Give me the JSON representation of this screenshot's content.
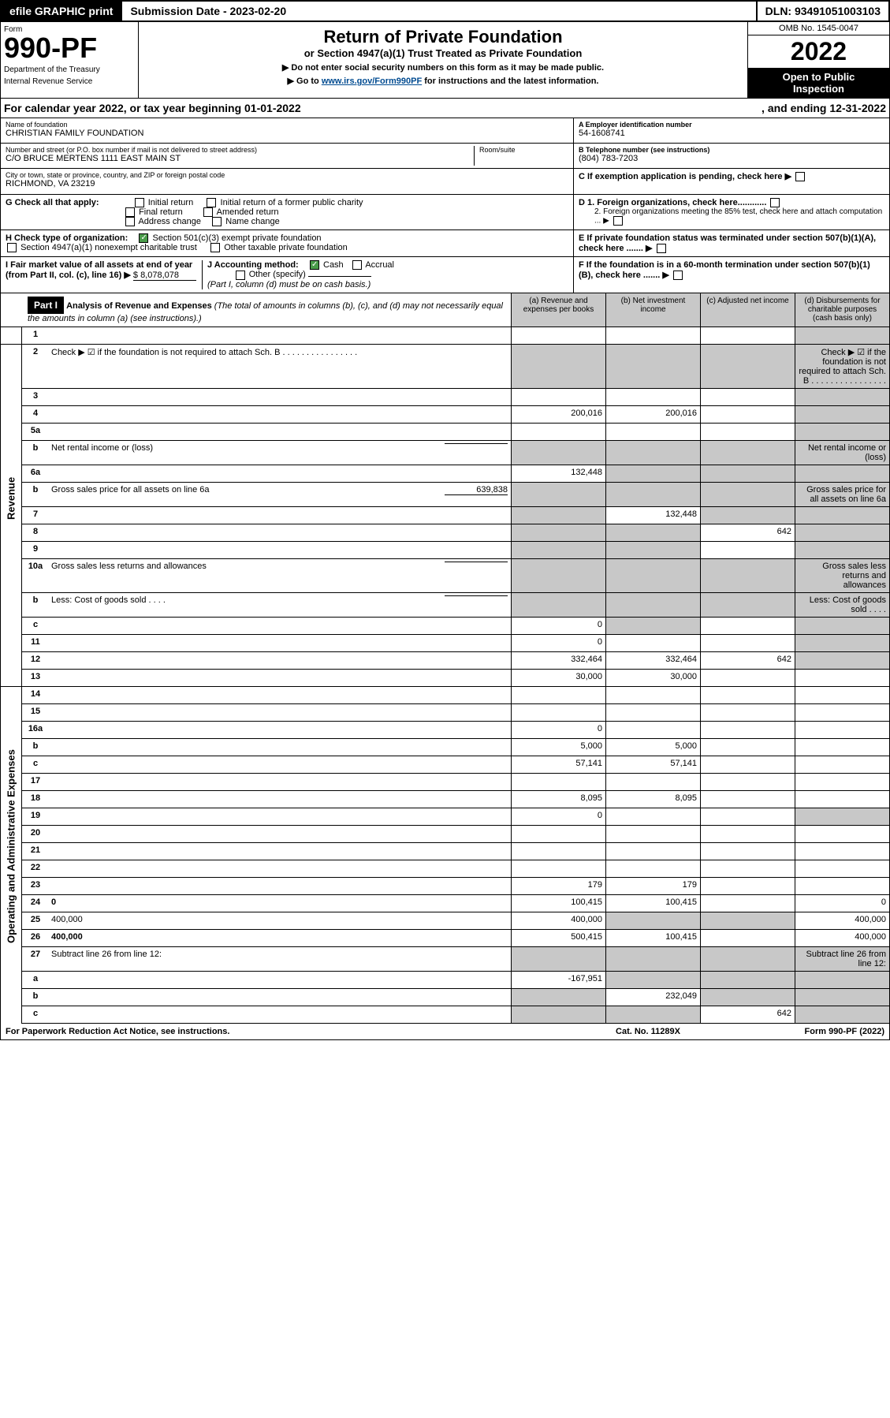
{
  "top": {
    "efile": "efile GRAPHIC print",
    "submission": "Submission Date - 2023-02-20",
    "dln": "DLN: 93491051003103"
  },
  "header": {
    "formLabel": "Form",
    "formNum": "990-PF",
    "dept1": "Department of the Treasury",
    "dept2": "Internal Revenue Service",
    "title": "Return of Private Foundation",
    "subtitle": "or Section 4947(a)(1) Trust Treated as Private Foundation",
    "instr1": "▶ Do not enter social security numbers on this form as it may be made public.",
    "instr2a": "▶ Go to ",
    "instr2link": "www.irs.gov/Form990PF",
    "instr2b": " for instructions and the latest information.",
    "omb": "OMB No. 1545-0047",
    "year": "2022",
    "open1": "Open to Public",
    "open2": "Inspection"
  },
  "calyear": {
    "left": "For calendar year 2022, or tax year beginning 01-01-2022",
    "right": ", and ending 12-31-2022"
  },
  "info": {
    "nameLabel": "Name of foundation",
    "name": "CHRISTIAN FAMILY FOUNDATION",
    "addrLabel": "Number and street (or P.O. box number if mail is not delivered to street address)",
    "addr": "C/O BRUCE MERTENS 1111 EAST MAIN ST",
    "room": "Room/suite",
    "cityLabel": "City or town, state or province, country, and ZIP or foreign postal code",
    "city": "RICHMOND, VA  23219",
    "einLabel": "A Employer identification number",
    "ein": "54-1608741",
    "phoneLabel": "B Telephone number (see instructions)",
    "phone": "(804) 783-7203",
    "cLabel": "C If exemption application is pending, check here ▶",
    "d1": "D 1. Foreign organizations, check here............",
    "d2": "2. Foreign organizations meeting the 85% test, check here and attach computation ... ▶",
    "eLabel": "E  If private foundation status was terminated under section 507(b)(1)(A), check here ....... ▶",
    "fLabel": "F  If the foundation is in a 60-month termination under section 507(b)(1)(B), check here ....... ▶"
  },
  "g": {
    "label": "G Check all that apply:",
    "opts": [
      "Initial return",
      "Initial return of a former public charity",
      "Final return",
      "Amended return",
      "Address change",
      "Name change"
    ]
  },
  "h": {
    "label": "H Check type of organization:",
    "opt1": "Section 501(c)(3) exempt private foundation",
    "opt2": "Section 4947(a)(1) nonexempt charitable trust",
    "opt3": "Other taxable private foundation"
  },
  "i": {
    "label": "I Fair market value of all assets at end of year (from Part II, col. (c), line 16) ▶",
    "val": "$  8,078,078"
  },
  "j": {
    "label": "J Accounting method:",
    "cash": "Cash",
    "accrual": "Accrual",
    "other": "Other (specify)",
    "note": "(Part I, column (d) must be on cash basis.)"
  },
  "part1": {
    "header": "Part I",
    "title": "Analysis of Revenue and Expenses",
    "titleNote": "(The total of amounts in columns (b), (c), and (d) may not necessarily equal the amounts in column (a) (see instructions).)",
    "colA": "(a)    Revenue and expenses per books",
    "colB": "(b)    Net investment income",
    "colC": "(c)    Adjusted net income",
    "colD": "(d)    Disbursements for charitable purposes (cash basis only)"
  },
  "sideLabels": {
    "revenue": "Revenue",
    "expenses": "Operating and Administrative Expenses"
  },
  "lines": [
    {
      "n": "1",
      "d": "",
      "a": "",
      "b": "",
      "c": "",
      "dgrey": true
    },
    {
      "n": "2",
      "d": "Check ▶ ☑ if the foundation is not required to attach Sch. B     .  .  .  .  .  .  .  .  .  .  .  .  .  .  .  .",
      "abgrey": true,
      "cgrey": true,
      "dgrey": true
    },
    {
      "n": "3",
      "d": "",
      "a": "",
      "b": "",
      "c": "",
      "dgrey": true
    },
    {
      "n": "4",
      "d": "",
      "a": "200,016",
      "b": "200,016",
      "c": "",
      "dgrey": true
    },
    {
      "n": "5a",
      "d": "",
      "a": "",
      "b": "",
      "c": "",
      "dgrey": true
    },
    {
      "n": "b",
      "d": "Net rental income or (loss)",
      "abgrey": true,
      "cgrey": true,
      "dgrey": true,
      "inline": ""
    },
    {
      "n": "6a",
      "d": "",
      "a": "132,448",
      "b": "",
      "c": "",
      "bgrey": true,
      "cgrey": true,
      "dgrey": true
    },
    {
      "n": "b",
      "d": "Gross sales price for all assets on line 6a",
      "inline": "639,838",
      "abgrey": true,
      "cgrey": true,
      "dgrey": true
    },
    {
      "n": "7",
      "d": "",
      "a": "",
      "b": "132,448",
      "c": "",
      "agrey": true,
      "cgrey": true,
      "dgrey": true
    },
    {
      "n": "8",
      "d": "",
      "a": "",
      "b": "",
      "c": "642",
      "agrey": true,
      "bgrey": true,
      "dgrey": true
    },
    {
      "n": "9",
      "d": "",
      "a": "",
      "b": "",
      "c": "",
      "agrey": true,
      "bgrey": true,
      "dgrey": true
    },
    {
      "n": "10a",
      "d": "Gross sales less returns and allowances",
      "inline": "",
      "abgrey": true,
      "cgrey": true,
      "dgrey": true
    },
    {
      "n": "b",
      "d": "Less: Cost of goods sold     .   .   .   .",
      "inline": "",
      "abgrey": true,
      "cgrey": true,
      "dgrey": true
    },
    {
      "n": "c",
      "d": "",
      "a": "0",
      "b": "",
      "c": "",
      "bgrey": true,
      "dgrey": true
    },
    {
      "n": "11",
      "d": "",
      "a": "0",
      "b": "",
      "c": "",
      "dgrey": true
    },
    {
      "n": "12",
      "d": "",
      "a": "332,464",
      "b": "332,464",
      "c": "642",
      "dgrey": true,
      "bold": true
    }
  ],
  "expLines": [
    {
      "n": "13",
      "d": "",
      "a": "30,000",
      "b": "30,000",
      "c": ""
    },
    {
      "n": "14",
      "d": "",
      "a": "",
      "b": "",
      "c": ""
    },
    {
      "n": "15",
      "d": "",
      "a": "",
      "b": "",
      "c": ""
    },
    {
      "n": "16a",
      "d": "",
      "a": "0",
      "b": "",
      "c": ""
    },
    {
      "n": "b",
      "d": "",
      "a": "5,000",
      "b": "5,000",
      "c": ""
    },
    {
      "n": "c",
      "d": "",
      "a": "57,141",
      "b": "57,141",
      "c": ""
    },
    {
      "n": "17",
      "d": "",
      "a": "",
      "b": "",
      "c": ""
    },
    {
      "n": "18",
      "d": "",
      "a": "8,095",
      "b": "8,095",
      "c": ""
    },
    {
      "n": "19",
      "d": "",
      "a": "0",
      "b": "",
      "c": "",
      "dgrey": true
    },
    {
      "n": "20",
      "d": "",
      "a": "",
      "b": "",
      "c": ""
    },
    {
      "n": "21",
      "d": "",
      "a": "",
      "b": "",
      "c": ""
    },
    {
      "n": "22",
      "d": "",
      "a": "",
      "b": "",
      "c": ""
    },
    {
      "n": "23",
      "d": "",
      "a": "179",
      "b": "179",
      "c": ""
    },
    {
      "n": "24",
      "d": "0",
      "a": "100,415",
      "b": "100,415",
      "c": "",
      "bold": true
    },
    {
      "n": "25",
      "d": "400,000",
      "a": "400,000",
      "b": "",
      "c": "",
      "bgrey": true,
      "cgrey": true
    },
    {
      "n": "26",
      "d": "400,000",
      "a": "500,415",
      "b": "100,415",
      "c": "",
      "bold": true
    },
    {
      "n": "27",
      "d": "Subtract line 26 from line 12:",
      "abgrey": true,
      "cgrey": true,
      "dgrey": true
    },
    {
      "n": "a",
      "d": "",
      "a": "-167,951",
      "b": "",
      "c": "",
      "bgrey": true,
      "cgrey": true,
      "dgrey": true,
      "bold": true
    },
    {
      "n": "b",
      "d": "",
      "a": "",
      "b": "232,049",
      "c": "",
      "agrey": true,
      "cgrey": true,
      "dgrey": true,
      "bold": true
    },
    {
      "n": "c",
      "d": "",
      "a": "",
      "b": "",
      "c": "642",
      "agrey": true,
      "bgrey": true,
      "dgrey": true,
      "bold": true
    }
  ],
  "footer": {
    "left": "For Paperwork Reduction Act Notice, see instructions.",
    "mid": "Cat. No. 11289X",
    "right": "Form 990-PF (2022)"
  }
}
